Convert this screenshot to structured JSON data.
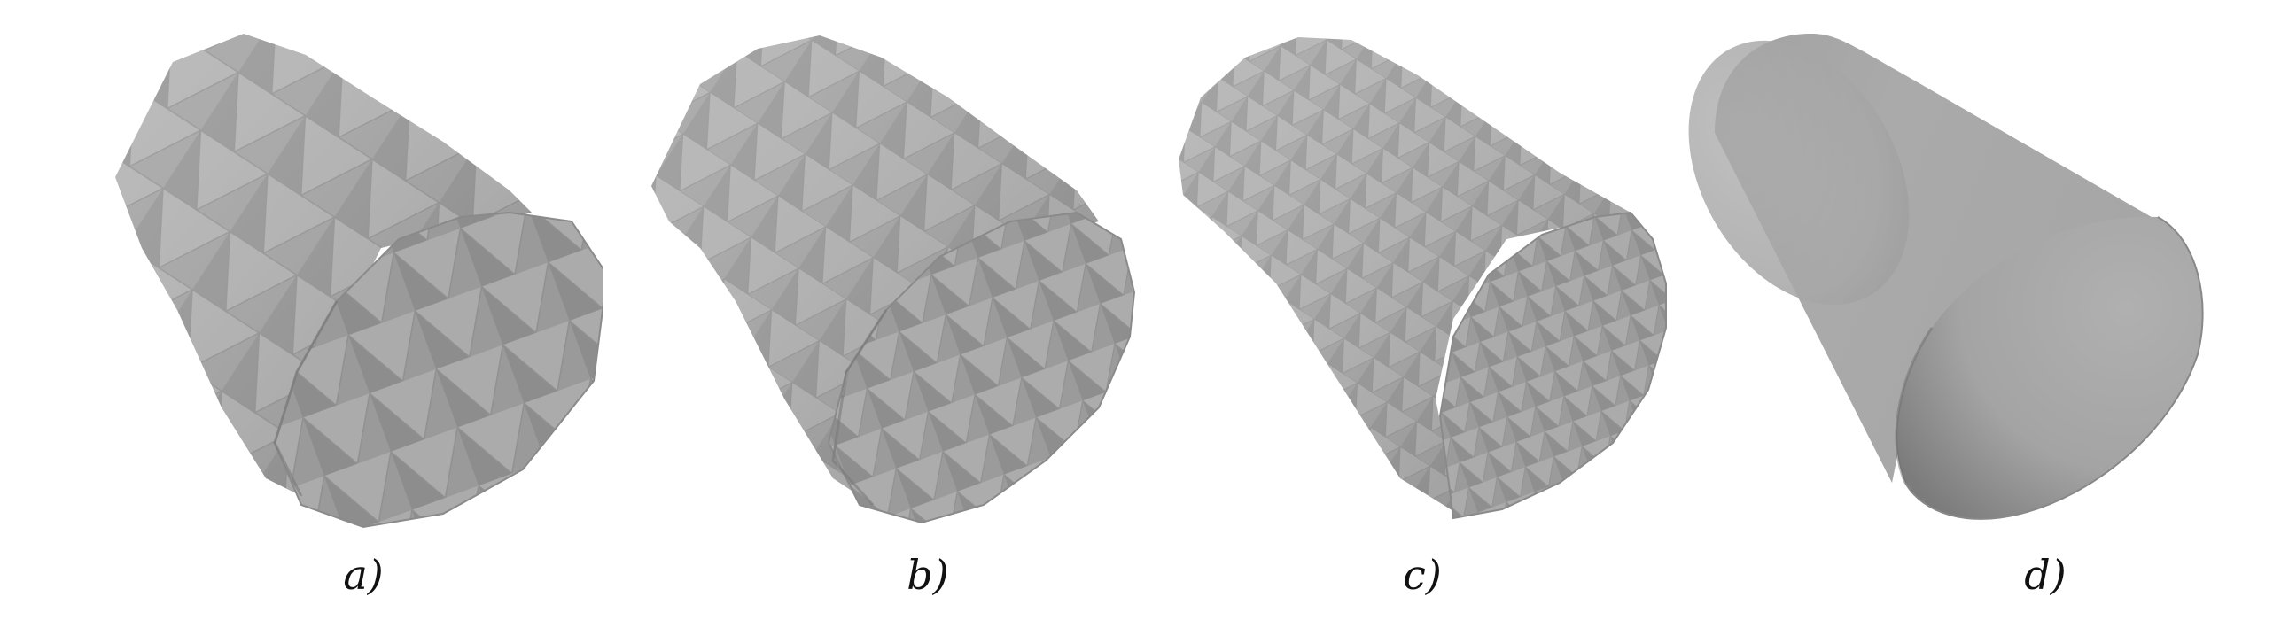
{
  "figure": {
    "panels": [
      {
        "label": "a)",
        "mesh_resolution": "coarse"
      },
      {
        "label": "b)",
        "mesh_resolution": "medium"
      },
      {
        "label": "c)",
        "mesh_resolution": "fine"
      },
      {
        "label": "d)",
        "mesh_resolution": "smooth"
      }
    ]
  },
  "colors": {
    "mesh_base": "#a4a4a4",
    "mesh_light": "#b6b6b6",
    "mesh_dark": "#7d7d7d",
    "edge": "#9a9a9a",
    "background": "#ffffff"
  }
}
